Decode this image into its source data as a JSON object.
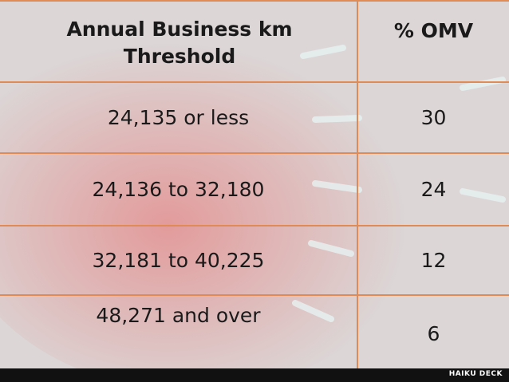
{
  "table": {
    "header": [
      "Annual Business km Threshold",
      "% OMV"
    ],
    "rows": [
      [
        "24,135 or less",
        "30"
      ],
      [
        "24,136 to 32,180",
        "24"
      ],
      [
        "32,181 to 40,225",
        "12"
      ],
      [
        "48,271 and over",
        "6"
      ]
    ]
  },
  "footer": {
    "brand": "HAIKU DECK"
  }
}
